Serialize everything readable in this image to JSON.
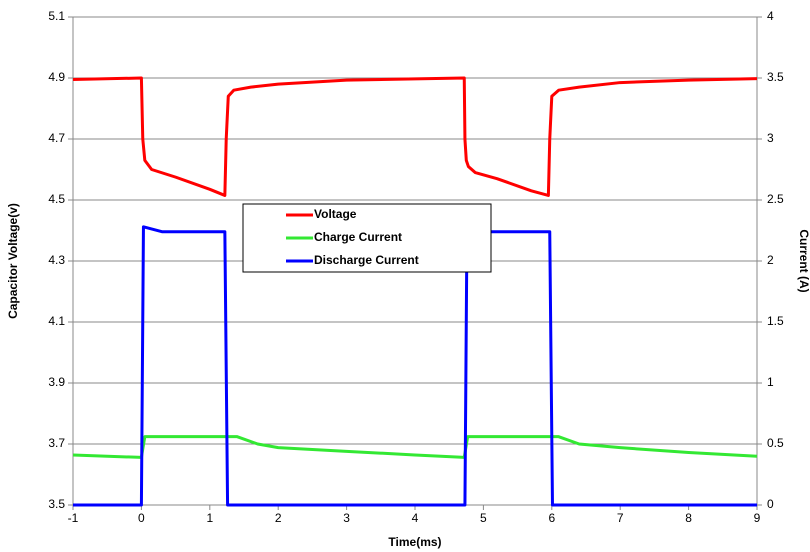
{
  "chart_data": {
    "type": "line",
    "xlabel": "Time(ms)",
    "ylabel": "Capacitor Voltage(v)",
    "y2label": "Current (A)",
    "xlim": [
      -1,
      9
    ],
    "xticks": [
      -1,
      0,
      1,
      2,
      3,
      4,
      5,
      6,
      7,
      8,
      9
    ],
    "ylim": [
      3.5,
      5.1
    ],
    "yticks": [
      3.5,
      3.7,
      3.9,
      4.1,
      4.3,
      4.5,
      4.7,
      4.9,
      5.1
    ],
    "y2lim": [
      0,
      4
    ],
    "y2ticks": [
      0,
      0.5,
      1,
      1.5,
      2,
      2.5,
      3,
      3.5,
      4
    ],
    "grid": true,
    "legend": "center",
    "series": [
      {
        "name": "Voltage",
        "color": "#ff0000",
        "x": [
          -1,
          0,
          0.02,
          0.05,
          0.15,
          0.5,
          1.0,
          1.22,
          1.24,
          1.27,
          1.35,
          1.6,
          2,
          3,
          4,
          4.72,
          4.73,
          4.75,
          4.78,
          4.88,
          5.2,
          5.7,
          5.95,
          5.97,
          6.0,
          6.1,
          6.4,
          7,
          8,
          9
        ],
        "values": [
          4.895,
          4.9,
          4.7,
          4.63,
          4.6,
          4.575,
          4.535,
          4.515,
          4.7,
          4.84,
          4.86,
          4.87,
          4.88,
          4.893,
          4.897,
          4.9,
          4.7,
          4.63,
          4.61,
          4.59,
          4.57,
          4.53,
          4.515,
          4.7,
          4.84,
          4.86,
          4.87,
          4.885,
          4.893,
          4.898
        ]
      },
      {
        "name": "Charge Current",
        "color": "#33e833",
        "axis": "y2",
        "x": [
          -1,
          0,
          0.05,
          1.4,
          1.7,
          2,
          3,
          4,
          4.72,
          4.77,
          6.1,
          6.4,
          7,
          8,
          9
        ],
        "values": [
          0.41,
          0.39,
          0.56,
          0.56,
          0.5,
          0.47,
          0.44,
          0.41,
          0.39,
          0.56,
          0.56,
          0.5,
          0.47,
          0.43,
          0.4
        ]
      },
      {
        "name": "Discharge Current",
        "color": "#0000ff",
        "axis": "y2",
        "x": [
          -1,
          0,
          0.03,
          0.3,
          1.22,
          1.26,
          1.3,
          4.72,
          4.73,
          4.76,
          5.0,
          5.97,
          6.01,
          6.05,
          9
        ],
        "values": [
          0,
          0,
          2.28,
          2.24,
          2.24,
          0,
          0,
          0,
          0,
          2.28,
          2.24,
          2.24,
          0,
          0,
          0
        ]
      }
    ]
  }
}
